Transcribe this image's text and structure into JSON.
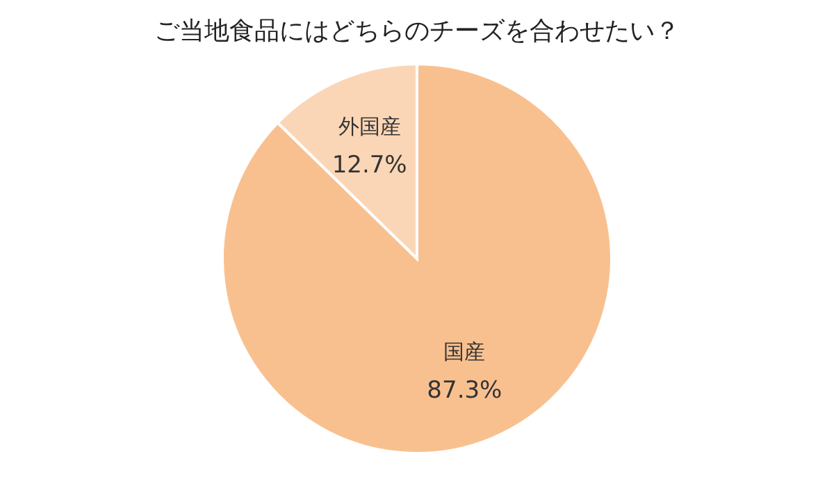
{
  "chart_data": {
    "type": "pie",
    "title": "ご当地食品にはどちらのチーズを合わせたい？",
    "categories": [
      "国産",
      "外国産"
    ],
    "values": [
      87.3,
      12.7
    ],
    "colors": [
      "#f9c08f",
      "#fbd6b6"
    ],
    "value_labels": [
      "87.3%",
      "12.7%"
    ],
    "legend": false
  }
}
